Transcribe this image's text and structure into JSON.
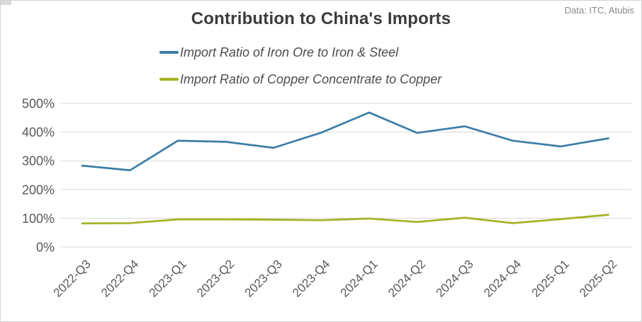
{
  "header": {
    "title": "Contribution to China's Imports",
    "source": "Data: ITC, Atubis"
  },
  "colors": {
    "iron_ore_line": "#3c7da6",
    "copper_line": "#a4b223",
    "gridline": "#d9d9d9",
    "axis_text": "#595959",
    "title_text": "#3b3b3b",
    "source_text": "#8a8a8a"
  },
  "chart_data": {
    "type": "line",
    "title": "Contribution to China's Imports",
    "xlabel": "",
    "ylabel": "",
    "categories": [
      "2022-Q3",
      "2022-Q4",
      "2023-Q1",
      "2023-Q2",
      "2023-Q3",
      "2023-Q4",
      "2024-Q1",
      "2024-Q2",
      "2024-Q3",
      "2024-Q4",
      "2025-Q1",
      "2025-Q2"
    ],
    "series": [
      {
        "name": "Import Ratio of Iron Ore to Iron & Steel",
        "color": "#3c7da6",
        "values": [
          283,
          267,
          370,
          366,
          345,
          398,
          468,
          397,
          420,
          370,
          350,
          378
        ]
      },
      {
        "name": "Import Ratio of Copper Concentrate to Copper",
        "color": "#a4b223",
        "values": [
          82,
          83,
          96,
          96,
          95,
          93,
          99,
          87,
          102,
          83,
          97,
          112
        ]
      }
    ],
    "ylim": [
      0,
      500
    ],
    "ytick_step": 100,
    "ytick_suffix": "%",
    "grid": "horizontal-only",
    "legend_position": "top-left",
    "x_tick_rotation_deg": -45
  }
}
